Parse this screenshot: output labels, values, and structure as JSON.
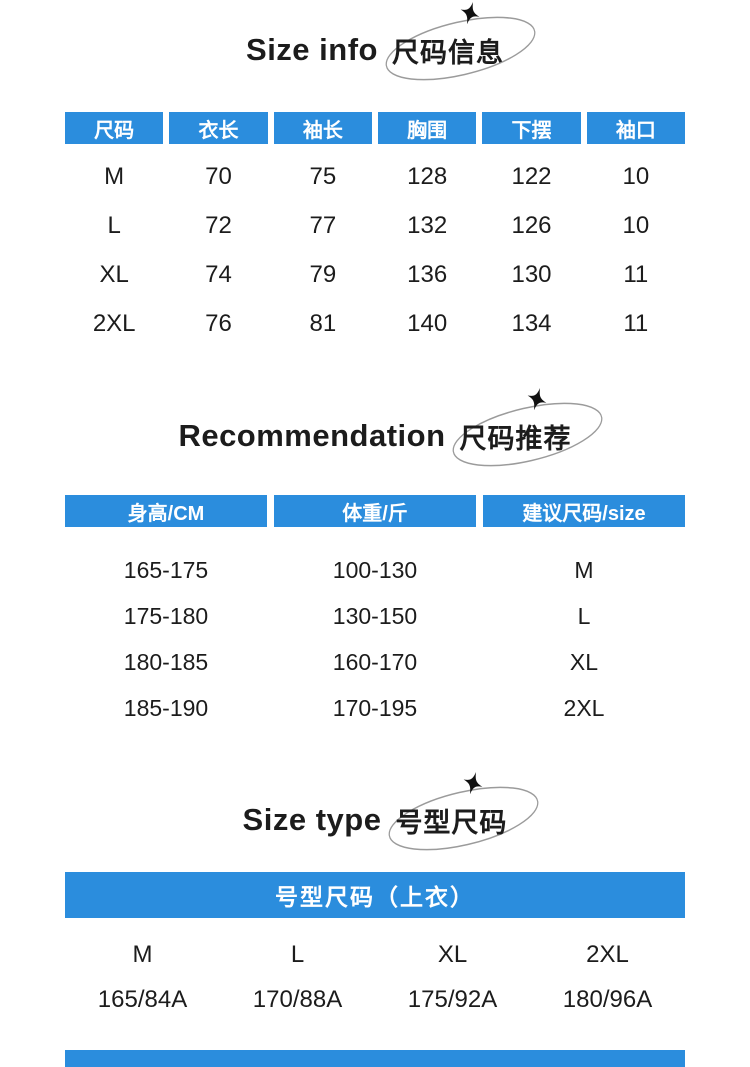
{
  "colors": {
    "accent": "#2b8ddd",
    "text": "#1c1c1c",
    "header_text": "#ffffff"
  },
  "sections": {
    "size_info": {
      "title_en": "Size info",
      "title_zh": "尺码信息",
      "table": {
        "headers": [
          "尺码",
          "衣长",
          "袖长",
          "胸围",
          "下摆",
          "袖口"
        ],
        "rows": [
          [
            "M",
            "70",
            "75",
            "128",
            "122",
            "10"
          ],
          [
            "L",
            "72",
            "77",
            "132",
            "126",
            "10"
          ],
          [
            "XL",
            "74",
            "79",
            "136",
            "130",
            "11"
          ],
          [
            "2XL",
            "76",
            "81",
            "140",
            "134",
            "11"
          ]
        ]
      }
    },
    "recommendation": {
      "title_en": "Recommendation",
      "title_zh": "尺码推荐",
      "table": {
        "headers": [
          "身高/CM",
          "体重/斤",
          "建议尺码/size"
        ],
        "rows": [
          [
            "165-175",
            "100-130",
            "M"
          ],
          [
            "175-180",
            "130-150",
            "L"
          ],
          [
            "180-185",
            "160-170",
            "XL"
          ],
          [
            "185-190",
            "170-195",
            "2XL"
          ]
        ]
      }
    },
    "size_type": {
      "title_en": "Size type",
      "title_zh": "号型尺码",
      "banner": "号型尺码（上衣）",
      "table": {
        "rows": [
          [
            "M",
            "L",
            "XL",
            "2XL"
          ],
          [
            "165/84A",
            "170/88A",
            "175/92A",
            "180/96A"
          ]
        ]
      }
    }
  }
}
